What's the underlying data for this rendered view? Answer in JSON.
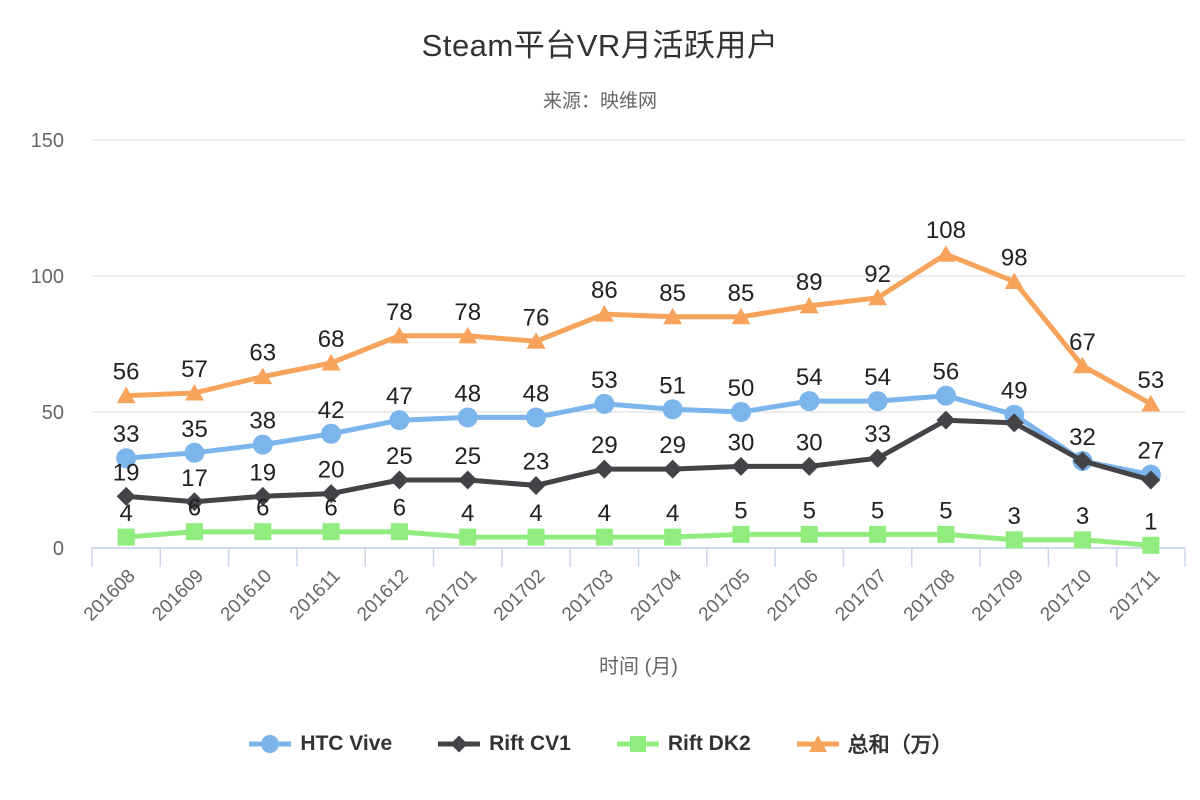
{
  "chart_data": {
    "type": "line",
    "title": "Steam平台VR月活跃用户",
    "subtitle": "来源：映维网",
    "xlabel": "时间 (月)",
    "ylabel": "",
    "ylim": [
      0,
      150
    ],
    "yticks": [
      0,
      50,
      100,
      150
    ],
    "grid": true,
    "legend_position": "bottom",
    "categories": [
      "201608",
      "201609",
      "201610",
      "201611",
      "201612",
      "201701",
      "201702",
      "201703",
      "201704",
      "201705",
      "201706",
      "201707",
      "201708",
      "201709",
      "201710",
      "201711"
    ],
    "series": [
      {
        "name": "HTC Vive",
        "color": "#7cb5ec",
        "marker": "circle",
        "values": [
          33,
          35,
          38,
          42,
          47,
          48,
          48,
          53,
          51,
          50,
          54,
          54,
          56,
          49,
          32,
          27
        ],
        "hidden_labels": []
      },
      {
        "name": "Rift CV1",
        "color": "#434348",
        "marker": "diamond",
        "values": [
          19,
          17,
          19,
          20,
          25,
          25,
          23,
          29,
          29,
          30,
          30,
          33,
          47,
          46,
          32,
          25
        ],
        "hidden_labels": [
          12,
          13,
          14,
          15
        ]
      },
      {
        "name": "Rift DK2",
        "color": "#90ed7d",
        "marker": "square",
        "values": [
          4,
          6,
          6,
          6,
          6,
          4,
          4,
          4,
          4,
          5,
          5,
          5,
          5,
          3,
          3,
          1
        ],
        "hidden_labels": []
      },
      {
        "name": "总和（万）",
        "color": "#f7a35c",
        "marker": "triangle",
        "values": [
          56,
          57,
          63,
          68,
          78,
          78,
          76,
          86,
          85,
          85,
          89,
          92,
          108,
          98,
          67,
          53
        ],
        "hidden_labels": []
      }
    ],
    "colors": {
      "gridline": "#e6e6e6",
      "axis_line": "#ccd6eb",
      "axis_tick": "#ccd6eb",
      "axis_label": "#666666",
      "axis_title": "#666666",
      "data_label": "#222222",
      "title": "#333333",
      "subtitle": "#666666",
      "legend_label": "#333333",
      "background": "#ffffff"
    }
  }
}
